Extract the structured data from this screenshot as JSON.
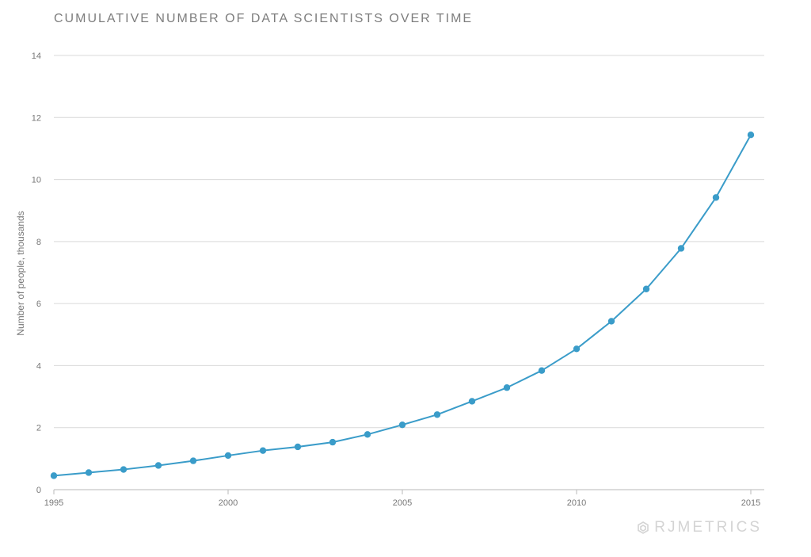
{
  "chart_data": {
    "type": "line",
    "title": "CUMULATIVE NUMBER OF DATA SCIENTISTS OVER TIME",
    "xlabel": "",
    "ylabel": "Number of people, thousands",
    "x": [
      1995,
      1996,
      1997,
      1998,
      1999,
      2000,
      2001,
      2002,
      2003,
      2004,
      2005,
      2006,
      2007,
      2008,
      2009,
      2010,
      2011,
      2012,
      2013,
      2014,
      2015
    ],
    "series": [
      {
        "values": [
          0.45,
          0.55,
          0.65,
          0.78,
          0.93,
          1.1,
          1.26,
          1.38,
          1.53,
          1.78,
          2.09,
          2.42,
          2.85,
          3.29,
          3.84,
          4.54,
          5.43,
          6.47,
          7.78,
          9.42,
          11.44
        ],
        "color": "#3a9cc9"
      }
    ],
    "xticks": [
      "1995",
      "2000",
      "2005",
      "2010",
      "2015"
    ],
    "yticks": [
      "0",
      "2",
      "4",
      "6",
      "8",
      "10",
      "12",
      "14"
    ],
    "xlim": [
      1995,
      2015
    ],
    "ylim": [
      0,
      14
    ],
    "grid": true,
    "legend": "none"
  },
  "branding": {
    "logo_text": "RJMETRICS",
    "logo_icon": "rjmetrics-logo-icon"
  },
  "colors": {
    "line": "#3a9cc9",
    "grid": "#d9d9d9",
    "axis": "#b8b8b8",
    "text": "#777777"
  }
}
